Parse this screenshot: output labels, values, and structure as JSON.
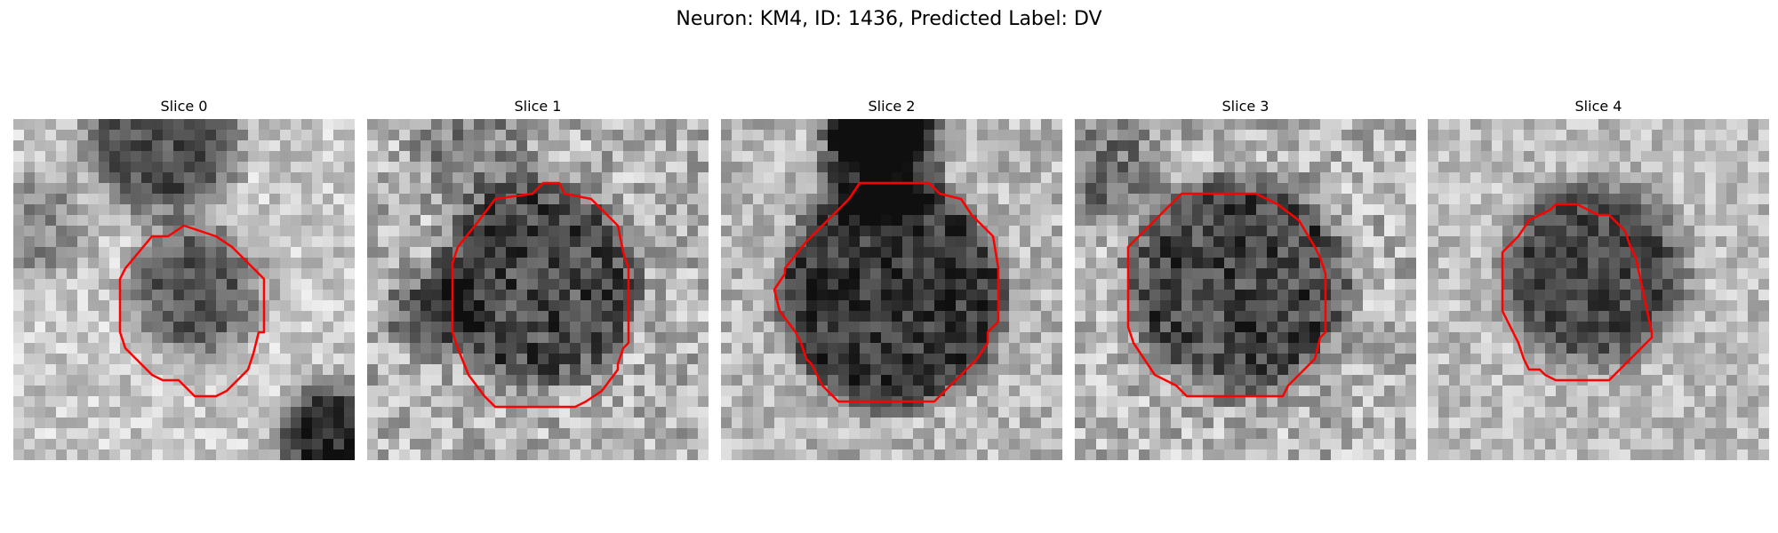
{
  "figure": {
    "title": "Neuron: KM4, ID: 1436, Predicted Label: DV"
  },
  "outline_color": "#ff0000",
  "panels": [
    {
      "title": "Slice 0"
    },
    {
      "title": "Slice 1"
    },
    {
      "title": "Slice 2"
    },
    {
      "title": "Slice 3"
    },
    {
      "title": "Slice 4"
    }
  ]
}
